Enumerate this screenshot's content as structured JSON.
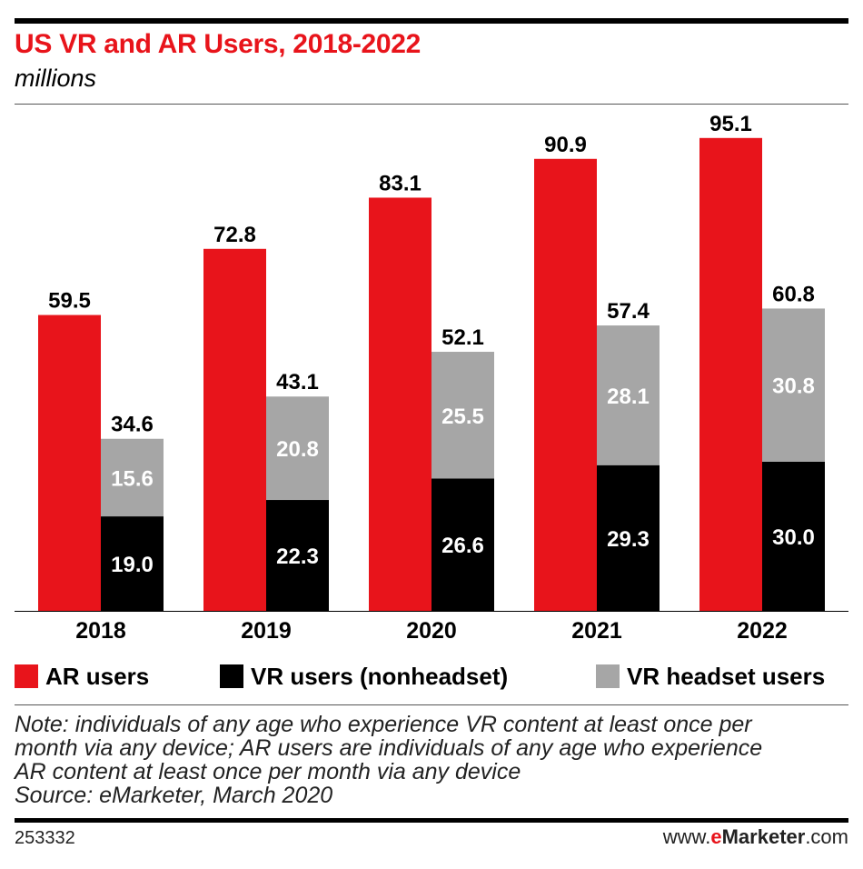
{
  "title": "US VR and AR Users, 2018-2022",
  "subtitle": "millions",
  "legend": [
    {
      "label": "AR users",
      "color": "#e8141b"
    },
    {
      "label": "VR users (nonheadset)",
      "color": "#000000"
    },
    {
      "label": "VR headset users",
      "color": "#a6a6a6"
    }
  ],
  "note": {
    "lines": [
      "Note: individuals of any age who experience VR content at least once per",
      "month via any device; AR users are individuals of any age who experience",
      "AR content at least once per month via any device",
      "Source: eMarketer, March 2020"
    ]
  },
  "footer": {
    "chart_id": "253332",
    "brand_prefix": "www.",
    "brand_e": "e",
    "brand_name": "Marketer",
    "brand_suffix": ".com"
  },
  "chart_data": {
    "type": "bar",
    "categories": [
      "2018",
      "2019",
      "2020",
      "2021",
      "2022"
    ],
    "series": [
      {
        "name": "AR users",
        "values": [
          59.5,
          72.8,
          83.1,
          90.9,
          95.1
        ],
        "color": "#e8141b",
        "stack": "ar"
      },
      {
        "name": "VR users (nonheadset)",
        "values": [
          19.0,
          22.3,
          26.6,
          29.3,
          30.0
        ],
        "color": "#000000",
        "stack": "vr"
      },
      {
        "name": "VR headset users",
        "values": [
          15.6,
          20.8,
          25.5,
          28.1,
          30.8
        ],
        "color": "#a6a6a6",
        "stack": "vr"
      }
    ],
    "vr_totals": [
      34.6,
      43.1,
      52.1,
      57.4,
      60.8
    ],
    "grid": false
  }
}
